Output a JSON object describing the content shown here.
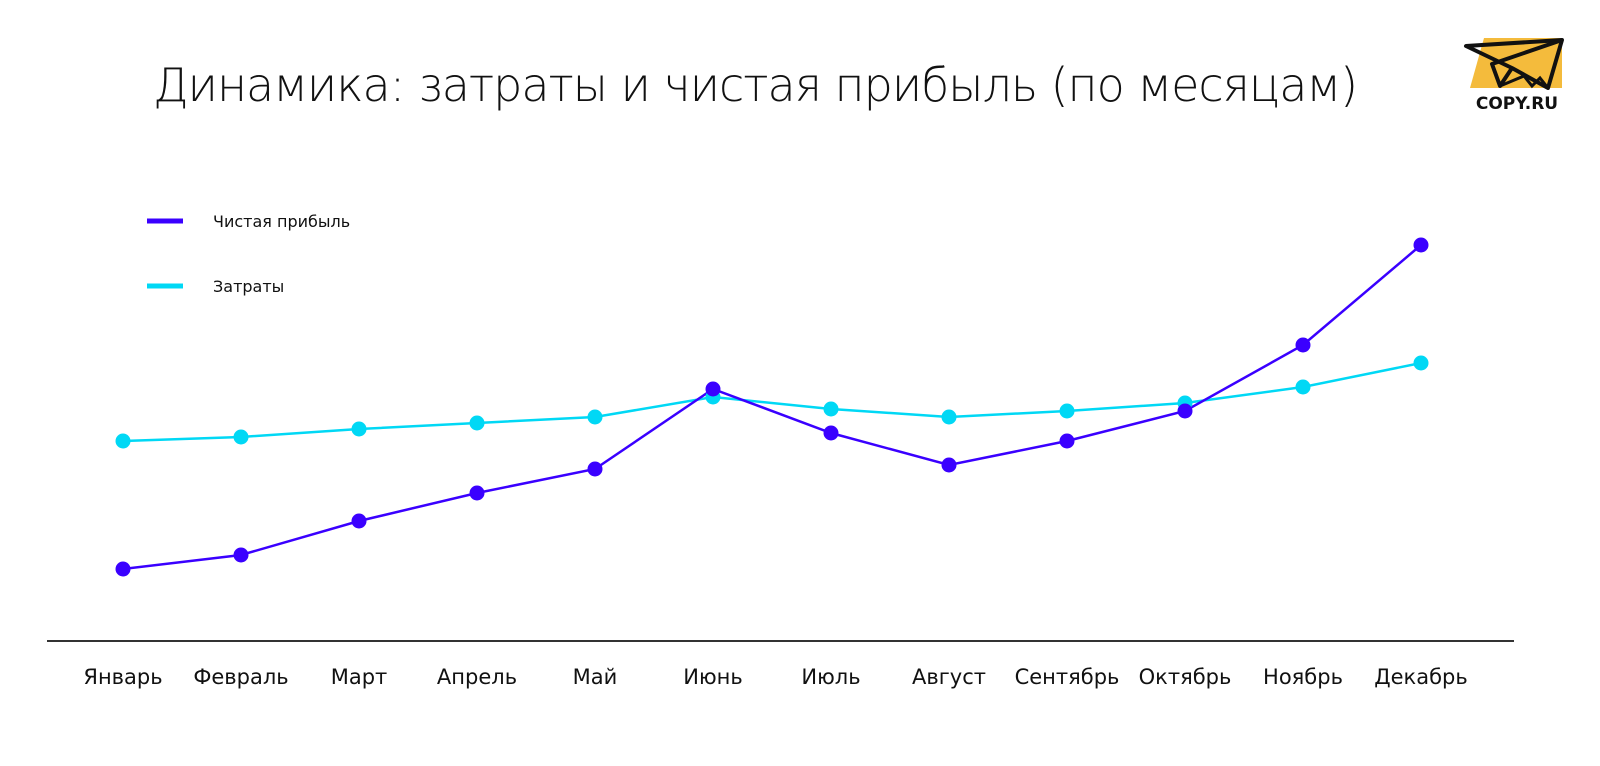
{
  "chart_data": {
    "type": "line",
    "title": "Динамика: затраты и чистая прибыль (по месяцам)",
    "xlabel": "",
    "ylabel": "",
    "categories": [
      "Январь",
      "Февраль",
      "Март",
      "Апрель",
      "Май",
      "Июнь",
      "Июль",
      "Август",
      "Сентябрь",
      "Октябрь",
      "Ноябрь",
      "Декабрь"
    ],
    "ylim": [
      0,
      100
    ],
    "y_axis_shown": false,
    "grid": false,
    "legend_position": "top-left",
    "series": [
      {
        "name": "Чистая прибыль",
        "color": "#3a00ff",
        "values": [
          18,
          21.5,
          30,
          37,
          43,
          63,
          52,
          44,
          50,
          57.5,
          74,
          99
        ]
      },
      {
        "name": "Затраты",
        "color": "#00d8f5",
        "values": [
          50,
          51,
          53,
          54.5,
          56,
          61,
          58,
          56,
          57.5,
          59.5,
          63.5,
          69.5
        ]
      }
    ]
  },
  "logo": {
    "text": "COPY.RU",
    "color": "#f4bb3c"
  }
}
